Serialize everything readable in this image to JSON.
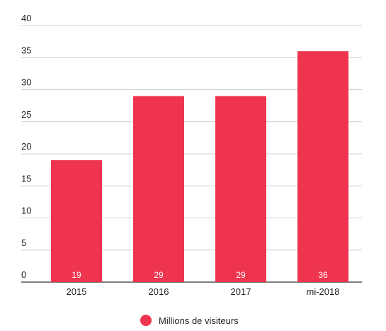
{
  "chart_data": {
    "type": "bar",
    "categories": [
      "2015",
      "2016",
      "2017",
      "mi-2018"
    ],
    "series": [
      {
        "name": "Millions de visiteurs",
        "values": [
          19,
          29,
          29,
          36
        ]
      }
    ],
    "ylim": [
      0,
      40
    ],
    "yticks": [
      0,
      5,
      10,
      15,
      20,
      25,
      30,
      35,
      40
    ],
    "data_labels": [
      "19",
      "29",
      "29",
      "36"
    ],
    "grid": true,
    "legend": "bottom-center",
    "colors": {
      "bar": "#EE344E",
      "grid": "#CFCFCF",
      "axis": "#333333",
      "text": "#222222"
    }
  }
}
